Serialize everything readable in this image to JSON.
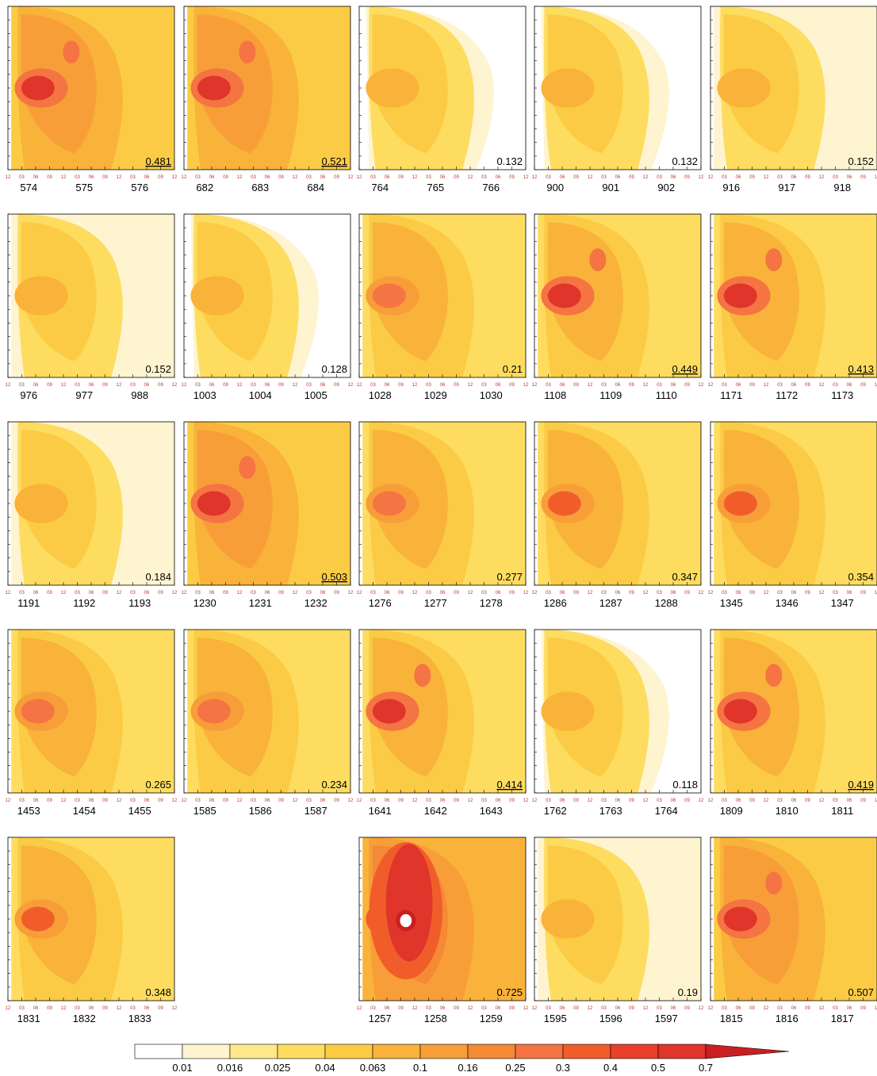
{
  "chart_data": {
    "type": "heatmap",
    "hour_ticks": [
      "12",
      "03",
      "06",
      "09",
      "12",
      "03",
      "06",
      "09",
      "12",
      "03",
      "06",
      "09",
      "12"
    ],
    "colorbar": {
      "levels": [
        "0.01",
        "0.016",
        "0.025",
        "0.04",
        "0.063",
        "0.1",
        "0.16",
        "0.25",
        "0.3",
        "0.4",
        "0.5",
        "0.7"
      ],
      "colors": [
        "#ffffff",
        "#fff4d0",
        "#ffe88a",
        "#fddc60",
        "#fbcb45",
        "#f9b23a",
        "#f79e38",
        "#f58a36",
        "#f57443",
        "#f15d2a",
        "#e8402a",
        "#e0352b",
        "#c82021"
      ],
      "extends_max": true
    },
    "panels": [
      {
        "days": [
          "574",
          "575",
          "576"
        ],
        "value": "0.481",
        "underline": true
      },
      {
        "days": [
          "682",
          "683",
          "684"
        ],
        "value": "0.521",
        "underline": true
      },
      {
        "days": [
          "764",
          "765",
          "766"
        ],
        "value": "0.132",
        "underline": false
      },
      {
        "days": [
          "900",
          "901",
          "902"
        ],
        "value": "0.132",
        "underline": false
      },
      {
        "days": [
          "916",
          "917",
          "918"
        ],
        "value": "0.152",
        "underline": false
      },
      {
        "days": [
          "976",
          "977",
          "988"
        ],
        "value": "0.152",
        "underline": false
      },
      {
        "days": [
          "1003",
          "1004",
          "1005"
        ],
        "value": "0.128",
        "underline": false
      },
      {
        "days": [
          "1028",
          "1029",
          "1030"
        ],
        "value": "0.21",
        "underline": false
      },
      {
        "days": [
          "1108",
          "1109",
          "1110"
        ],
        "value": "0.449",
        "underline": true
      },
      {
        "days": [
          "1171",
          "1172",
          "1173"
        ],
        "value": "0.413",
        "underline": true
      },
      {
        "days": [
          "1191",
          "1192",
          "1193"
        ],
        "value": "0.184",
        "underline": false
      },
      {
        "days": [
          "1230",
          "1231",
          "1232"
        ],
        "value": "0.503",
        "underline": true
      },
      {
        "days": [
          "1276",
          "1277",
          "1278"
        ],
        "value": "0.277",
        "underline": false
      },
      {
        "days": [
          "1286",
          "1287",
          "1288"
        ],
        "value": "0.347",
        "underline": false
      },
      {
        "days": [
          "1345",
          "1346",
          "1347"
        ],
        "value": "0.354",
        "underline": false
      },
      {
        "days": [
          "1453",
          "1454",
          "1455"
        ],
        "value": "0.265",
        "underline": false
      },
      {
        "days": [
          "1585",
          "1586",
          "1587"
        ],
        "value": "0.234",
        "underline": false
      },
      {
        "days": [
          "1641",
          "1642",
          "1643"
        ],
        "value": "0.414",
        "underline": true
      },
      {
        "days": [
          "1762",
          "1763",
          "1764"
        ],
        "value": "0.118",
        "underline": false
      },
      {
        "days": [
          "1809",
          "1810",
          "1811"
        ],
        "value": "0.419",
        "underline": true
      },
      {
        "days": [
          "1831",
          "1832",
          "1833"
        ],
        "value": "0.348",
        "underline": false
      },
      null,
      {
        "days": [
          "1257",
          "1258",
          "1259"
        ],
        "value": "0.725",
        "underline": false
      },
      {
        "days": [
          "1595",
          "1596",
          "1597"
        ],
        "value": "0.19",
        "underline": false
      },
      {
        "days": [
          "1815",
          "1816",
          "1817"
        ],
        "value": "0.507",
        "underline": false
      }
    ]
  }
}
